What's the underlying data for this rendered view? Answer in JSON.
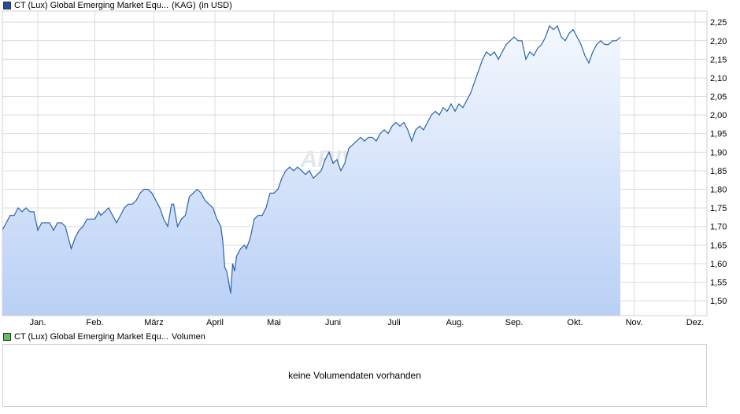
{
  "price_legend": {
    "name": "CT (Lux) Global Emerging Market Equ...",
    "suffix": "(KAG)",
    "currency": "(in USD)",
    "color": "#1f4fa5"
  },
  "volume_legend": {
    "name": "CT (Lux) Global Emerging Market Equ...",
    "suffix": "Volumen",
    "color": "#5fc05f"
  },
  "volume_message": "keine Volumendaten vorhanden",
  "watermark": "ARIVA.DE",
  "colors": {
    "line": "#2a63ad",
    "fill_top": "#f4f8fe",
    "fill_bottom": "#b9d0f5",
    "grid": "#dcdcdc"
  },
  "chart_data": {
    "type": "area",
    "grid": true,
    "ylim": [
      1.46,
      2.28
    ],
    "yticks": [
      "2,25",
      "2,20",
      "2,15",
      "2,10",
      "2,05",
      "2,00",
      "1,95",
      "1,90",
      "1,85",
      "1,80",
      "1,75",
      "1,70",
      "1,65",
      "1,60",
      "1,55",
      "1,50"
    ],
    "ytick_values": [
      2.25,
      2.2,
      2.15,
      2.1,
      2.05,
      2.0,
      1.95,
      1.9,
      1.85,
      1.8,
      1.75,
      1.7,
      1.65,
      1.6,
      1.55,
      1.5
    ],
    "xticks": [
      "Jan.",
      "Feb.",
      "März",
      "April",
      "Mai",
      "Juni",
      "Juli",
      "Aug.",
      "Sep.",
      "Okt.",
      "Nov.",
      "Dez."
    ],
    "xtick_days": [
      31,
      60,
      90,
      121,
      151,
      181,
      212,
      243,
      273,
      304,
      334,
      365
    ],
    "x_range_days": [
      13,
      371
    ],
    "series": [
      {
        "points": [
          [
            13,
            1.69
          ],
          [
            15,
            1.71
          ],
          [
            17,
            1.73
          ],
          [
            19,
            1.73
          ],
          [
            21,
            1.75
          ],
          [
            23,
            1.74
          ],
          [
            25,
            1.75
          ],
          [
            27,
            1.74
          ],
          [
            29,
            1.74
          ],
          [
            31,
            1.69
          ],
          [
            33,
            1.71
          ],
          [
            35,
            1.71
          ],
          [
            37,
            1.71
          ],
          [
            39,
            1.69
          ],
          [
            41,
            1.71
          ],
          [
            43,
            1.71
          ],
          [
            45,
            1.7
          ],
          [
            47,
            1.66
          ],
          [
            48,
            1.64
          ],
          [
            50,
            1.67
          ],
          [
            52,
            1.69
          ],
          [
            54,
            1.7
          ],
          [
            56,
            1.72
          ],
          [
            58,
            1.72
          ],
          [
            60,
            1.72
          ],
          [
            62,
            1.74
          ],
          [
            63,
            1.73
          ],
          [
            65,
            1.74
          ],
          [
            67,
            1.75
          ],
          [
            69,
            1.73
          ],
          [
            71,
            1.71
          ],
          [
            73,
            1.73
          ],
          [
            75,
            1.75
          ],
          [
            77,
            1.76
          ],
          [
            79,
            1.76
          ],
          [
            81,
            1.77
          ],
          [
            83,
            1.79
          ],
          [
            85,
            1.8
          ],
          [
            87,
            1.8
          ],
          [
            89,
            1.79
          ],
          [
            91,
            1.77
          ],
          [
            93,
            1.75
          ],
          [
            95,
            1.72
          ],
          [
            97,
            1.7
          ],
          [
            99,
            1.76
          ],
          [
            100,
            1.76
          ],
          [
            102,
            1.7
          ],
          [
            104,
            1.72
          ],
          [
            106,
            1.73
          ],
          [
            108,
            1.78
          ],
          [
            110,
            1.79
          ],
          [
            112,
            1.8
          ],
          [
            114,
            1.79
          ],
          [
            116,
            1.77
          ],
          [
            118,
            1.76
          ],
          [
            120,
            1.75
          ],
          [
            122,
            1.72
          ],
          [
            124,
            1.7
          ],
          [
            125,
            1.66
          ],
          [
            126,
            1.59
          ],
          [
            127,
            1.58
          ],
          [
            128,
            1.55
          ],
          [
            129,
            1.52
          ],
          [
            130,
            1.6
          ],
          [
            131,
            1.58
          ],
          [
            132,
            1.62
          ],
          [
            134,
            1.64
          ],
          [
            136,
            1.65
          ],
          [
            137,
            1.64
          ],
          [
            139,
            1.67
          ],
          [
            141,
            1.72
          ],
          [
            143,
            1.73
          ],
          [
            145,
            1.73
          ],
          [
            147,
            1.75
          ],
          [
            149,
            1.79
          ],
          [
            151,
            1.79
          ],
          [
            153,
            1.8
          ],
          [
            155,
            1.83
          ],
          [
            157,
            1.85
          ],
          [
            159,
            1.86
          ],
          [
            161,
            1.85
          ],
          [
            163,
            1.86
          ],
          [
            165,
            1.85
          ],
          [
            167,
            1.84
          ],
          [
            169,
            1.85
          ],
          [
            171,
            1.83
          ],
          [
            173,
            1.84
          ],
          [
            175,
            1.85
          ],
          [
            177,
            1.88
          ],
          [
            179,
            1.9
          ],
          [
            181,
            1.87
          ],
          [
            183,
            1.88
          ],
          [
            185,
            1.85
          ],
          [
            187,
            1.87
          ],
          [
            189,
            1.91
          ],
          [
            191,
            1.92
          ],
          [
            193,
            1.93
          ],
          [
            195,
            1.94
          ],
          [
            197,
            1.93
          ],
          [
            199,
            1.94
          ],
          [
            201,
            1.94
          ],
          [
            203,
            1.93
          ],
          [
            205,
            1.95
          ],
          [
            207,
            1.96
          ],
          [
            209,
            1.95
          ],
          [
            211,
            1.97
          ],
          [
            213,
            1.98
          ],
          [
            215,
            1.97
          ],
          [
            217,
            1.98
          ],
          [
            219,
            1.96
          ],
          [
            221,
            1.93
          ],
          [
            223,
            1.96
          ],
          [
            225,
            1.97
          ],
          [
            227,
            1.96
          ],
          [
            229,
            1.98
          ],
          [
            231,
            2.0
          ],
          [
            233,
            2.01
          ],
          [
            235,
            2.0
          ],
          [
            237,
            2.02
          ],
          [
            239,
            2.01
          ],
          [
            241,
            2.03
          ],
          [
            243,
            2.01
          ],
          [
            245,
            2.03
          ],
          [
            247,
            2.02
          ],
          [
            249,
            2.04
          ],
          [
            251,
            2.06
          ],
          [
            253,
            2.09
          ],
          [
            255,
            2.12
          ],
          [
            257,
            2.15
          ],
          [
            259,
            2.17
          ],
          [
            261,
            2.16
          ],
          [
            263,
            2.17
          ],
          [
            265,
            2.15
          ],
          [
            267,
            2.17
          ],
          [
            269,
            2.19
          ],
          [
            271,
            2.2
          ],
          [
            273,
            2.21
          ],
          [
            275,
            2.2
          ],
          [
            277,
            2.2
          ],
          [
            279,
            2.15
          ],
          [
            281,
            2.17
          ],
          [
            283,
            2.16
          ],
          [
            285,
            2.18
          ],
          [
            287,
            2.19
          ],
          [
            289,
            2.21
          ],
          [
            291,
            2.24
          ],
          [
            293,
            2.23
          ],
          [
            295,
            2.24
          ],
          [
            297,
            2.21
          ],
          [
            299,
            2.2
          ],
          [
            301,
            2.22
          ],
          [
            303,
            2.23
          ],
          [
            305,
            2.21
          ],
          [
            307,
            2.19
          ],
          [
            309,
            2.16
          ],
          [
            311,
            2.14
          ],
          [
            313,
            2.17
          ],
          [
            315,
            2.19
          ],
          [
            317,
            2.2
          ],
          [
            319,
            2.19
          ],
          [
            321,
            2.19
          ],
          [
            323,
            2.2
          ],
          [
            325,
            2.2
          ],
          [
            327,
            2.21
          ]
        ]
      }
    ]
  }
}
